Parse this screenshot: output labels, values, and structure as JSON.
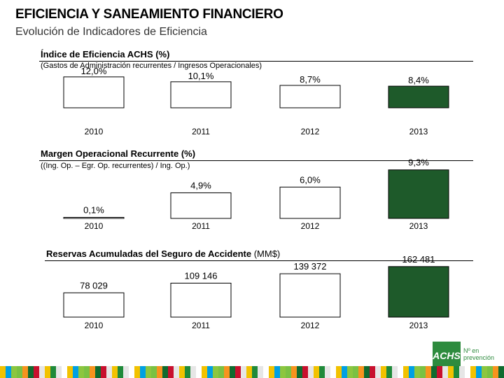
{
  "header": {
    "title": "EFICIENCIA Y SANEAMIENTO FINANCIERO",
    "subtitle": "Evolución de Indicadores de Eficiencia"
  },
  "colors": {
    "bar_fill": "#ffffff",
    "bar_highlight": "#1e5a2a",
    "stroke": "#000000",
    "brand": "#2e8b3e"
  },
  "chart_data": [
    {
      "type": "bar",
      "title": "Índice de Eficiencia ACHS (%)",
      "subtitle": "(Gastos de Administración recurrentes / Ingresos Operacionales)",
      "categories": [
        "2010",
        "2011",
        "2012",
        "2013"
      ],
      "values": [
        12.0,
        10.1,
        8.7,
        8.4
      ],
      "labels": [
        "12,0%",
        "10,1%",
        "8,7%",
        "8,4%"
      ],
      "highlight": [
        false,
        false,
        false,
        true
      ],
      "ylim": [
        0,
        12.5
      ]
    },
    {
      "type": "bar",
      "title": "Margen Operacional Recurrente (%)",
      "subtitle": "((Ing. Op. – Egr. Op. recurrentes) / Ing. Op.)",
      "categories": [
        "2010",
        "2011",
        "2012",
        "2013"
      ],
      "values": [
        0.1,
        4.9,
        6.0,
        9.3
      ],
      "labels": [
        "0,1%",
        "4,9%",
        "6,0%",
        "9,3%"
      ],
      "highlight": [
        false,
        false,
        false,
        true
      ],
      "ylim": [
        0,
        11
      ]
    },
    {
      "type": "bar",
      "title": "Reservas Acumuladas del Seguro de Accidente",
      "unit": "(MM$)",
      "categories": [
        "2010",
        "2011",
        "2012",
        "2013"
      ],
      "values": [
        78029,
        109146,
        139372,
        162481
      ],
      "labels": [
        "78 029",
        "109 146",
        "139 372",
        "162 481"
      ],
      "highlight": [
        false,
        false,
        false,
        true
      ],
      "ylim": [
        0,
        180000
      ]
    }
  ],
  "logo": {
    "mark": "ACHS",
    "text_line1": "Nº en",
    "text_line2": "prevención"
  }
}
